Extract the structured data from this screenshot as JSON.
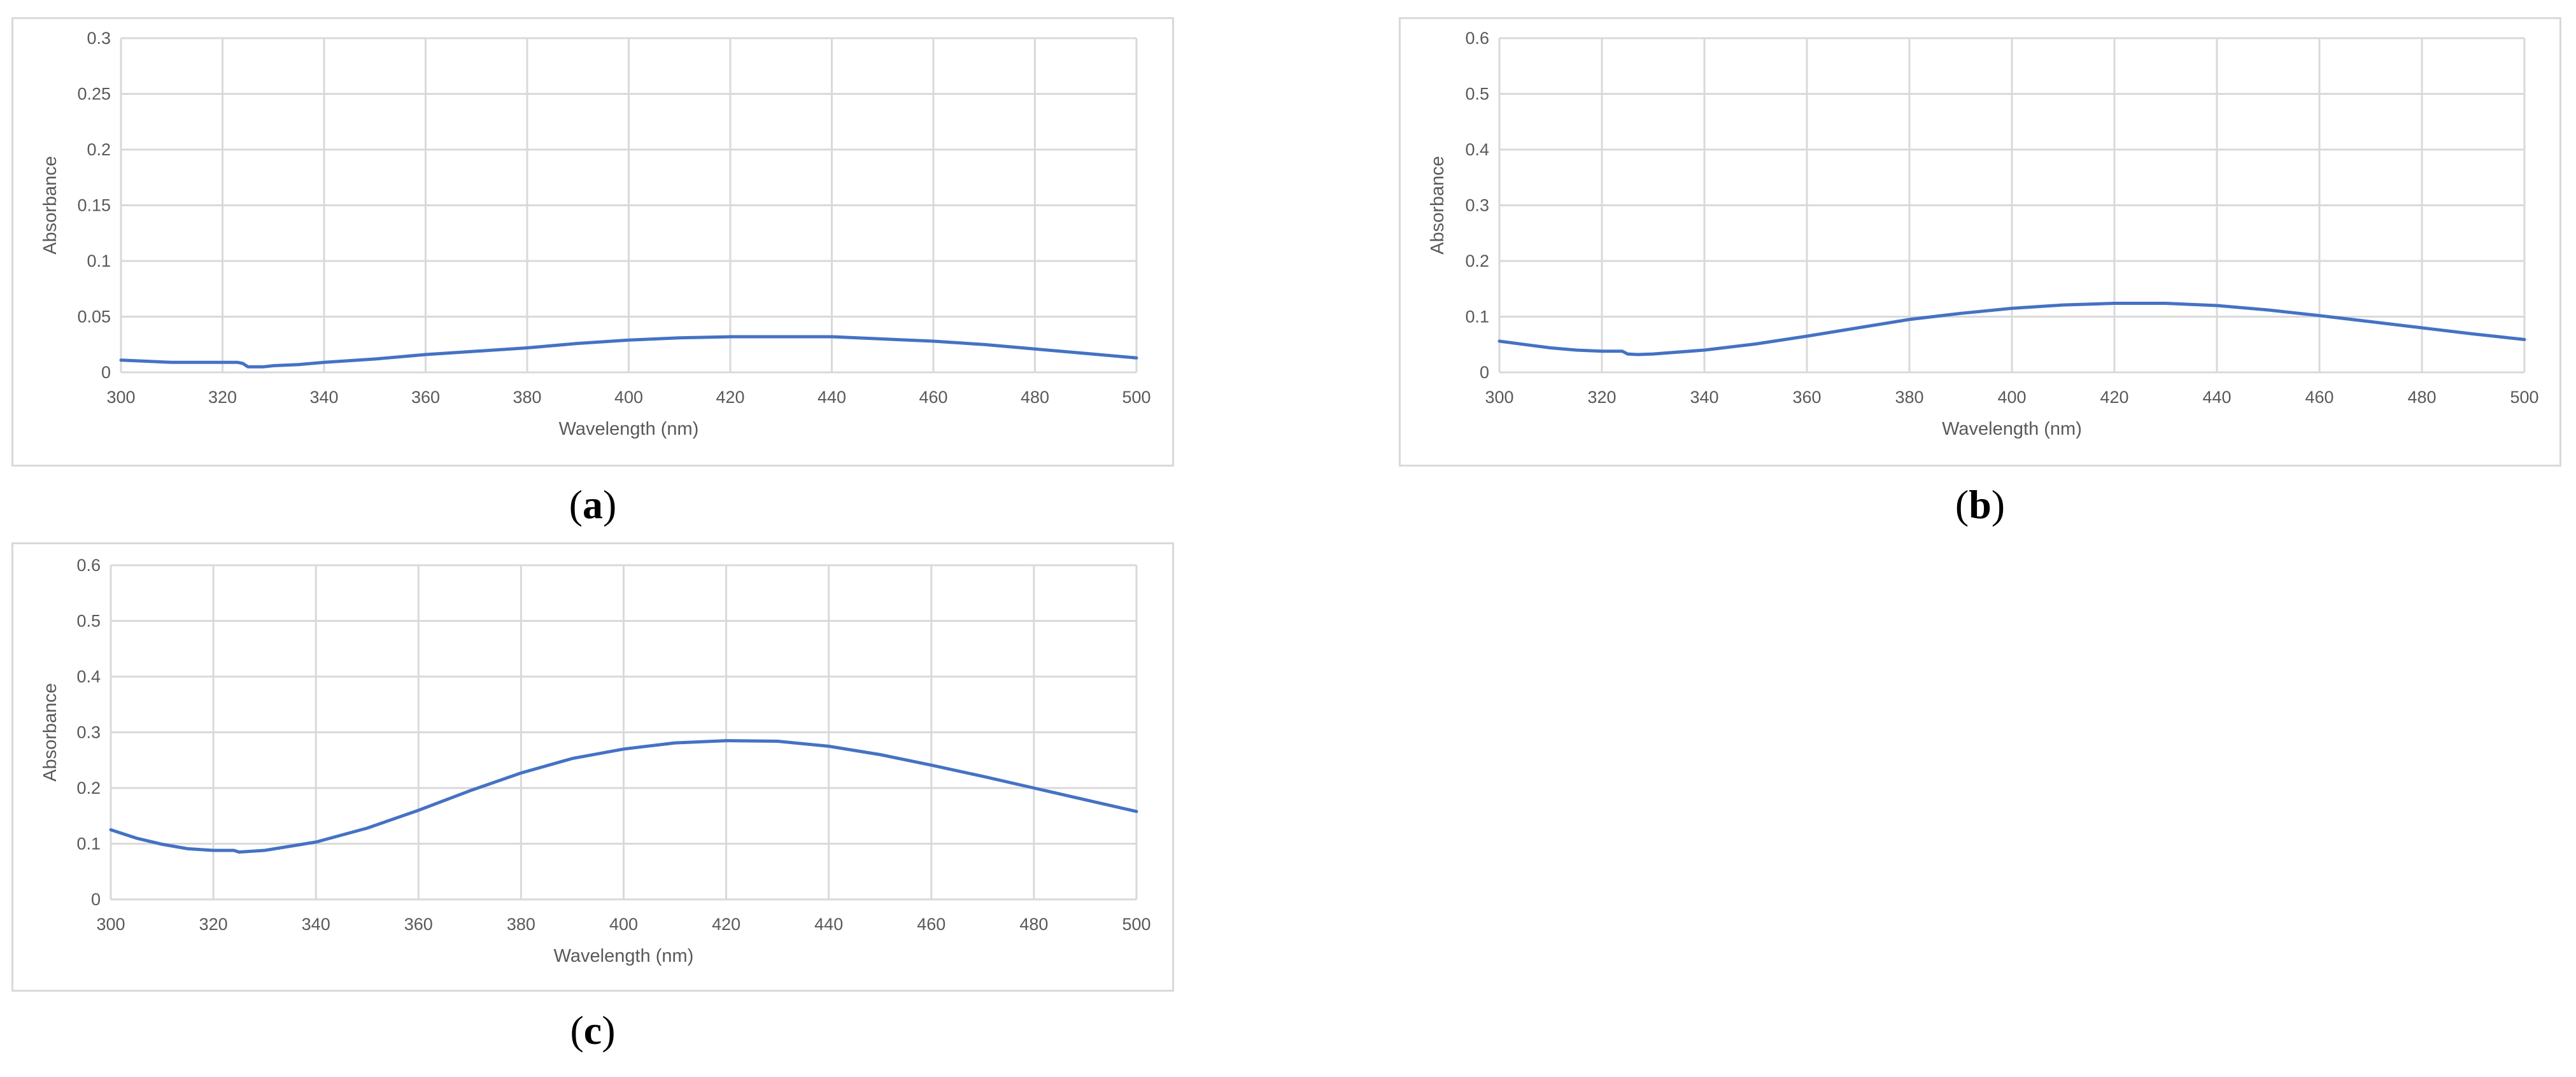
{
  "chart_data": [
    {
      "panel_label": "a",
      "type": "line",
      "xlabel": "Wavelength (nm)",
      "ylabel": "Absorbance",
      "xlim": [
        300,
        500
      ],
      "ylim": [
        0,
        0.3
      ],
      "xticks": [
        300,
        320,
        340,
        360,
        380,
        400,
        420,
        440,
        460,
        480,
        500
      ],
      "yticks": [
        0,
        0.05,
        0.1,
        0.15,
        0.2,
        0.25,
        0.3
      ],
      "ytick_labels": [
        "0",
        "0.05",
        "0.1",
        "0.15",
        "0.2",
        "0.25",
        "0.3"
      ],
      "grid": true,
      "line_color": "#4472c4",
      "series": [
        {
          "x": [
            300,
            305,
            310,
            315,
            320,
            323,
            324,
            325,
            328,
            330,
            335,
            340,
            350,
            360,
            370,
            380,
            390,
            400,
            410,
            420,
            430,
            440,
            450,
            460,
            470,
            480,
            490,
            500
          ],
          "y": [
            0.011,
            0.01,
            0.009,
            0.009,
            0.009,
            0.009,
            0.008,
            0.005,
            0.005,
            0.006,
            0.007,
            0.009,
            0.012,
            0.016,
            0.019,
            0.022,
            0.026,
            0.029,
            0.031,
            0.032,
            0.032,
            0.032,
            0.03,
            0.028,
            0.025,
            0.021,
            0.017,
            0.013
          ]
        }
      ]
    },
    {
      "panel_label": "b",
      "type": "line",
      "xlabel": "Wavelength (nm)",
      "ylabel": "Absorbance",
      "xlim": [
        300,
        500
      ],
      "ylim": [
        0,
        0.6
      ],
      "xticks": [
        300,
        320,
        340,
        360,
        380,
        400,
        420,
        440,
        460,
        480,
        500
      ],
      "yticks": [
        0,
        0.1,
        0.2,
        0.3,
        0.4,
        0.5,
        0.6
      ],
      "ytick_labels": [
        "0",
        "0.1",
        "0.2",
        "0.3",
        "0.4",
        "0.5",
        "0.6"
      ],
      "grid": true,
      "line_color": "#4472c4",
      "series": [
        {
          "x": [
            300,
            305,
            310,
            315,
            320,
            324,
            325,
            327,
            330,
            340,
            350,
            360,
            370,
            380,
            390,
            400,
            410,
            420,
            430,
            440,
            450,
            460,
            470,
            480,
            490,
            500
          ],
          "y": [
            0.056,
            0.05,
            0.044,
            0.04,
            0.038,
            0.038,
            0.033,
            0.032,
            0.033,
            0.04,
            0.051,
            0.065,
            0.08,
            0.095,
            0.106,
            0.115,
            0.121,
            0.124,
            0.124,
            0.12,
            0.112,
            0.102,
            0.091,
            0.08,
            0.069,
            0.059
          ]
        }
      ]
    },
    {
      "panel_label": "c",
      "type": "line",
      "xlabel": "Wavelength (nm)",
      "ylabel": "Absorbance",
      "xlim": [
        300,
        500
      ],
      "ylim": [
        0,
        0.6
      ],
      "xticks": [
        300,
        320,
        340,
        360,
        380,
        400,
        420,
        440,
        460,
        480,
        500
      ],
      "yticks": [
        0,
        0.1,
        0.2,
        0.3,
        0.4,
        0.5,
        0.6
      ],
      "ytick_labels": [
        "0",
        "0.1",
        "0.2",
        "0.3",
        "0.4",
        "0.5",
        "0.6"
      ],
      "grid": true,
      "line_color": "#4472c4",
      "series": [
        {
          "x": [
            300,
            305,
            310,
            315,
            320,
            324,
            325,
            330,
            340,
            350,
            360,
            370,
            380,
            390,
            400,
            410,
            420,
            430,
            440,
            450,
            460,
            470,
            480,
            490,
            500
          ],
          "y": [
            0.125,
            0.11,
            0.099,
            0.091,
            0.088,
            0.088,
            0.085,
            0.088,
            0.103,
            0.128,
            0.16,
            0.195,
            0.227,
            0.253,
            0.27,
            0.281,
            0.285,
            0.284,
            0.275,
            0.26,
            0.241,
            0.221,
            0.2,
            0.179,
            0.158
          ]
        }
      ]
    }
  ]
}
